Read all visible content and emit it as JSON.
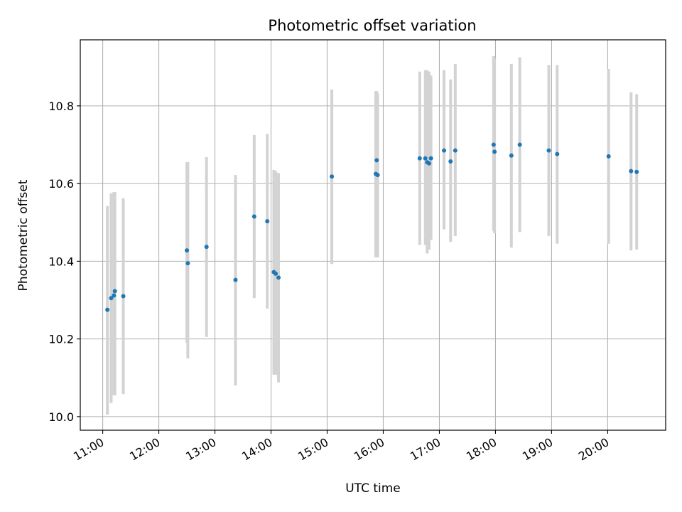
{
  "chart_data": {
    "type": "scatter",
    "title": "Photometric offset variation",
    "xlabel": "UTC time",
    "ylabel": "Photometric offset",
    "x_tick_labels": [
      "11:00",
      "12:00",
      "13:00",
      "14:00",
      "15:00",
      "16:00",
      "17:00",
      "18:00",
      "19:00",
      "20:00"
    ],
    "y_tick_labels": [
      "10.0",
      "10.2",
      "10.4",
      "10.6",
      "10.8"
    ],
    "xlim": [
      "10:36",
      "21:02"
    ],
    "ylim": [
      9.965,
      10.97
    ],
    "grid": true,
    "colors": {
      "point": "#1f77b4",
      "errorbar": "#d3d3d3",
      "grid": "#b0b0b0"
    },
    "series": [
      {
        "points": [
          {
            "t": "11:05",
            "y": 10.275,
            "lo": 10.005,
            "hi": 10.542
          },
          {
            "t": "11:09",
            "y": 10.305,
            "lo": 10.035,
            "hi": 10.575
          },
          {
            "t": "11:12",
            "y": 10.312,
            "lo": 10.055,
            "hi": 10.578
          },
          {
            "t": "11:13",
            "y": 10.323,
            "lo": 10.055,
            "hi": 10.578
          },
          {
            "t": "11:22",
            "y": 10.31,
            "lo": 10.058,
            "hi": 10.562
          },
          {
            "t": "12:30",
            "y": 10.428,
            "lo": 10.19,
            "hi": 10.655
          },
          {
            "t": "12:31",
            "y": 10.395,
            "lo": 10.15,
            "hi": 10.655
          },
          {
            "t": "12:51",
            "y": 10.437,
            "lo": 10.205,
            "hi": 10.668
          },
          {
            "t": "13:22",
            "y": 10.352,
            "lo": 10.08,
            "hi": 10.622
          },
          {
            "t": "13:42",
            "y": 10.515,
            "lo": 10.305,
            "hi": 10.725
          },
          {
            "t": "13:56",
            "y": 10.503,
            "lo": 10.278,
            "hi": 10.728
          },
          {
            "t": "14:03",
            "y": 10.372,
            "lo": 10.108,
            "hi": 10.635
          },
          {
            "t": "14:05",
            "y": 10.368,
            "lo": 10.108,
            "hi": 10.632
          },
          {
            "t": "14:08",
            "y": 10.358,
            "lo": 10.088,
            "hi": 10.627
          },
          {
            "t": "15:05",
            "y": 10.618,
            "lo": 10.393,
            "hi": 10.842
          },
          {
            "t": "15:52",
            "y": 10.625,
            "lo": 10.41,
            "hi": 10.838
          },
          {
            "t": "15:53",
            "y": 10.66,
            "lo": 10.41,
            "hi": 10.838
          },
          {
            "t": "15:54",
            "y": 10.622,
            "lo": 10.41,
            "hi": 10.832
          },
          {
            "t": "16:39",
            "y": 10.665,
            "lo": 10.442,
            "hi": 10.888
          },
          {
            "t": "16:45",
            "y": 10.665,
            "lo": 10.442,
            "hi": 10.892
          },
          {
            "t": "16:47",
            "y": 10.655,
            "lo": 10.42,
            "hi": 10.892
          },
          {
            "t": "16:49",
            "y": 10.652,
            "lo": 10.43,
            "hi": 10.888
          },
          {
            "t": "16:51",
            "y": 10.665,
            "lo": 10.455,
            "hi": 10.878
          },
          {
            "t": "17:05",
            "y": 10.685,
            "lo": 10.482,
            "hi": 10.892
          },
          {
            "t": "17:12",
            "y": 10.657,
            "lo": 10.45,
            "hi": 10.868
          },
          {
            "t": "17:17",
            "y": 10.685,
            "lo": 10.465,
            "hi": 10.908
          },
          {
            "t": "17:58",
            "y": 10.7,
            "lo": 10.478,
            "hi": 10.928
          },
          {
            "t": "17:59",
            "y": 10.682,
            "lo": 10.472,
            "hi": 10.922
          },
          {
            "t": "18:17",
            "y": 10.672,
            "lo": 10.435,
            "hi": 10.908
          },
          {
            "t": "18:26",
            "y": 10.7,
            "lo": 10.475,
            "hi": 10.925
          },
          {
            "t": "18:57",
            "y": 10.685,
            "lo": 10.465,
            "hi": 10.905
          },
          {
            "t": "19:06",
            "y": 10.676,
            "lo": 10.445,
            "hi": 10.905
          },
          {
            "t": "20:01",
            "y": 10.67,
            "lo": 10.445,
            "hi": 10.895
          },
          {
            "t": "20:25",
            "y": 10.632,
            "lo": 10.428,
            "hi": 10.835
          },
          {
            "t": "20:31",
            "y": 10.63,
            "lo": 10.43,
            "hi": 10.83
          }
        ]
      }
    ]
  }
}
